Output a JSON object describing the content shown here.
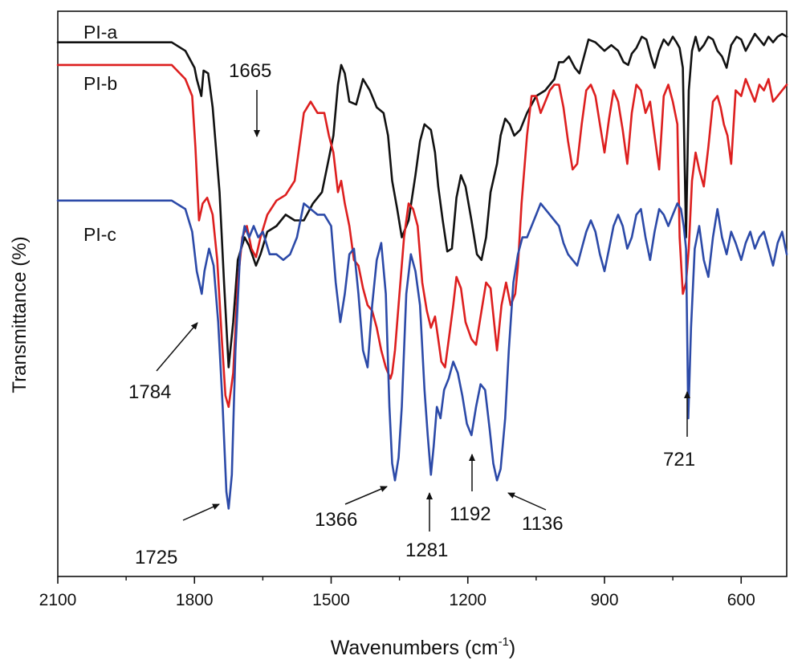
{
  "chart_data": {
    "type": "line",
    "xlabel": "Wavenumbers (cm",
    "xlabel_sup": "-1",
    "xlabel_close": ")",
    "ylabel": "Transmittance (%)",
    "xlim": [
      2100,
      500
    ],
    "x_reversed": true,
    "y_ticks_shown": false,
    "ylim": [
      0,
      1
    ],
    "x_ticks": [
      {
        "value": 2100,
        "label": "2100"
      },
      {
        "value": 1800,
        "label": "1800"
      },
      {
        "value": 1500,
        "label": "1500"
      },
      {
        "value": 1200,
        "label": "1200"
      },
      {
        "value": 900,
        "label": "900"
      },
      {
        "value": 600,
        "label": "600"
      }
    ],
    "x_minor_ticks": [
      1950,
      1650,
      1350,
      1050,
      750
    ],
    "series": [
      {
        "name": "PI-a",
        "color": "#111111",
        "x": [
          2100,
          1950,
          1850,
          1820,
          1800,
          1795,
          1785,
          1780,
          1770,
          1760,
          1745,
          1735,
          1725,
          1715,
          1705,
          1690,
          1680,
          1665,
          1655,
          1640,
          1620,
          1600,
          1580,
          1560,
          1540,
          1520,
          1505,
          1495,
          1485,
          1478,
          1470,
          1460,
          1445,
          1430,
          1415,
          1400,
          1385,
          1375,
          1366,
          1355,
          1345,
          1330,
          1315,
          1305,
          1295,
          1281,
          1272,
          1265,
          1255,
          1245,
          1235,
          1225,
          1215,
          1205,
          1192,
          1180,
          1170,
          1160,
          1150,
          1136,
          1128,
          1118,
          1108,
          1098,
          1085,
          1070,
          1050,
          1030,
          1010,
          1000,
          990,
          978,
          965,
          955,
          945,
          935,
          920,
          900,
          885,
          870,
          858,
          848,
          840,
          830,
          818,
          808,
          798,
          790,
          780,
          770,
          760,
          750,
          742,
          735,
          728,
          721,
          715,
          708,
          700,
          692,
          682,
          672,
          662,
          652,
          642,
          632,
          622,
          610,
          600,
          590,
          580,
          570,
          560,
          550,
          540,
          530,
          520,
          510,
          500
        ],
        "y": [
          0.945,
          0.945,
          0.945,
          0.93,
          0.9,
          0.88,
          0.85,
          0.895,
          0.89,
          0.83,
          0.68,
          0.52,
          0.37,
          0.45,
          0.56,
          0.6,
          0.585,
          0.55,
          0.57,
          0.61,
          0.62,
          0.64,
          0.63,
          0.63,
          0.66,
          0.68,
          0.74,
          0.78,
          0.87,
          0.905,
          0.89,
          0.84,
          0.835,
          0.88,
          0.86,
          0.83,
          0.82,
          0.78,
          0.7,
          0.65,
          0.6,
          0.63,
          0.71,
          0.77,
          0.8,
          0.79,
          0.75,
          0.69,
          0.63,
          0.575,
          0.58,
          0.67,
          0.71,
          0.69,
          0.63,
          0.57,
          0.56,
          0.6,
          0.68,
          0.73,
          0.78,
          0.81,
          0.8,
          0.78,
          0.79,
          0.82,
          0.85,
          0.86,
          0.88,
          0.91,
          0.91,
          0.92,
          0.9,
          0.89,
          0.92,
          0.95,
          0.945,
          0.93,
          0.94,
          0.93,
          0.91,
          0.905,
          0.925,
          0.935,
          0.955,
          0.95,
          0.92,
          0.9,
          0.93,
          0.95,
          0.94,
          0.955,
          0.945,
          0.935,
          0.9,
          0.6,
          0.86,
          0.93,
          0.955,
          0.93,
          0.94,
          0.955,
          0.95,
          0.93,
          0.92,
          0.9,
          0.94,
          0.955,
          0.95,
          0.93,
          0.945,
          0.96,
          0.95,
          0.94,
          0.955,
          0.945,
          0.955,
          0.96,
          0.955
        ]
      },
      {
        "name": "PI-b",
        "color": "#dd1f1f",
        "x": [
          2100,
          1950,
          1850,
          1820,
          1805,
          1798,
          1790,
          1782,
          1772,
          1760,
          1750,
          1740,
          1732,
          1725,
          1715,
          1705,
          1695,
          1685,
          1675,
          1665,
          1655,
          1640,
          1620,
          1600,
          1580,
          1560,
          1545,
          1530,
          1515,
          1505,
          1495,
          1485,
          1478,
          1470,
          1460,
          1450,
          1440,
          1430,
          1420,
          1410,
          1400,
          1390,
          1380,
          1370,
          1366,
          1360,
          1350,
          1340,
          1330,
          1320,
          1310,
          1300,
          1290,
          1281,
          1272,
          1265,
          1258,
          1250,
          1240,
          1232,
          1225,
          1215,
          1205,
          1192,
          1182,
          1170,
          1160,
          1150,
          1136,
          1126,
          1116,
          1106,
          1096,
          1090,
          1082,
          1070,
          1060,
          1050,
          1040,
          1030,
          1020,
          1010,
          1000,
          990,
          980,
          970,
          960,
          950,
          940,
          930,
          920,
          910,
          900,
          890,
          880,
          870,
          860,
          850,
          840,
          830,
          820,
          810,
          800,
          790,
          780,
          770,
          760,
          750,
          740,
          735,
          728,
          721,
          715,
          708,
          700,
          692,
          682,
          672,
          662,
          652,
          645,
          638,
          630,
          622,
          612,
          600,
          590,
          580,
          570,
          560,
          550,
          540,
          530,
          520,
          510,
          500
        ],
        "y": [
          0.905,
          0.905,
          0.905,
          0.88,
          0.85,
          0.76,
          0.63,
          0.66,
          0.67,
          0.64,
          0.56,
          0.42,
          0.32,
          0.3,
          0.36,
          0.52,
          0.6,
          0.62,
          0.58,
          0.565,
          0.6,
          0.64,
          0.665,
          0.675,
          0.7,
          0.82,
          0.84,
          0.82,
          0.82,
          0.78,
          0.75,
          0.68,
          0.7,
          0.66,
          0.62,
          0.56,
          0.55,
          0.51,
          0.48,
          0.47,
          0.44,
          0.4,
          0.37,
          0.35,
          0.36,
          0.4,
          0.5,
          0.6,
          0.66,
          0.65,
          0.62,
          0.52,
          0.47,
          0.44,
          0.46,
          0.42,
          0.38,
          0.37,
          0.43,
          0.48,
          0.53,
          0.51,
          0.45,
          0.42,
          0.41,
          0.47,
          0.52,
          0.51,
          0.4,
          0.48,
          0.52,
          0.48,
          0.5,
          0.55,
          0.66,
          0.78,
          0.85,
          0.85,
          0.82,
          0.84,
          0.86,
          0.87,
          0.87,
          0.83,
          0.77,
          0.72,
          0.73,
          0.8,
          0.86,
          0.87,
          0.85,
          0.8,
          0.75,
          0.81,
          0.86,
          0.84,
          0.79,
          0.73,
          0.82,
          0.87,
          0.86,
          0.82,
          0.84,
          0.78,
          0.72,
          0.85,
          0.87,
          0.84,
          0.8,
          0.6,
          0.5,
          0.52,
          0.58,
          0.7,
          0.75,
          0.72,
          0.69,
          0.76,
          0.84,
          0.85,
          0.83,
          0.8,
          0.78,
          0.73,
          0.86,
          0.85,
          0.88,
          0.86,
          0.84,
          0.87,
          0.86,
          0.88,
          0.84,
          0.85,
          0.86,
          0.87
        ]
      },
      {
        "name": "PI-c",
        "color": "#2c4aa8",
        "x": [
          2100,
          1950,
          1850,
          1820,
          1805,
          1795,
          1784,
          1778,
          1768,
          1758,
          1748,
          1738,
          1730,
          1725,
          1718,
          1710,
          1700,
          1690,
          1680,
          1670,
          1660,
          1650,
          1635,
          1620,
          1605,
          1590,
          1575,
          1560,
          1545,
          1530,
          1515,
          1500,
          1490,
          1480,
          1470,
          1460,
          1450,
          1440,
          1430,
          1420,
          1410,
          1400,
          1390,
          1380,
          1372,
          1366,
          1360,
          1352,
          1345,
          1335,
          1325,
          1315,
          1305,
          1295,
          1288,
          1281,
          1275,
          1268,
          1260,
          1252,
          1242,
          1232,
          1222,
          1212,
          1202,
          1192,
          1182,
          1172,
          1162,
          1152,
          1144,
          1136,
          1128,
          1118,
          1110,
          1100,
          1090,
          1080,
          1070,
          1060,
          1050,
          1040,
          1030,
          1020,
          1010,
          1000,
          990,
          980,
          970,
          960,
          950,
          940,
          930,
          920,
          910,
          900,
          890,
          880,
          870,
          860,
          850,
          840,
          830,
          820,
          810,
          800,
          790,
          780,
          770,
          760,
          750,
          740,
          732,
          726,
          721,
          716,
          710,
          702,
          692,
          682,
          672,
          662,
          652,
          642,
          632,
          622,
          612,
          600,
          590,
          580,
          570,
          560,
          550,
          540,
          530,
          520,
          510,
          500
        ],
        "y": [
          0.665,
          0.665,
          0.665,
          0.65,
          0.61,
          0.54,
          0.5,
          0.54,
          0.58,
          0.55,
          0.45,
          0.3,
          0.15,
          0.12,
          0.18,
          0.4,
          0.57,
          0.62,
          0.6,
          0.62,
          0.6,
          0.61,
          0.57,
          0.57,
          0.56,
          0.57,
          0.6,
          0.66,
          0.65,
          0.64,
          0.64,
          0.62,
          0.52,
          0.45,
          0.5,
          0.57,
          0.58,
          0.5,
          0.4,
          0.37,
          0.48,
          0.56,
          0.59,
          0.5,
          0.3,
          0.2,
          0.17,
          0.21,
          0.3,
          0.5,
          0.57,
          0.54,
          0.48,
          0.33,
          0.25,
          0.18,
          0.23,
          0.3,
          0.28,
          0.33,
          0.35,
          0.38,
          0.36,
          0.32,
          0.27,
          0.25,
          0.3,
          0.34,
          0.33,
          0.26,
          0.2,
          0.17,
          0.19,
          0.28,
          0.4,
          0.52,
          0.57,
          0.6,
          0.6,
          0.62,
          0.64,
          0.66,
          0.65,
          0.64,
          0.63,
          0.62,
          0.59,
          0.57,
          0.56,
          0.55,
          0.58,
          0.61,
          0.63,
          0.61,
          0.57,
          0.54,
          0.58,
          0.62,
          0.64,
          0.62,
          0.58,
          0.6,
          0.64,
          0.65,
          0.6,
          0.56,
          0.61,
          0.65,
          0.64,
          0.62,
          0.64,
          0.66,
          0.65,
          0.62,
          0.58,
          0.28,
          0.44,
          0.58,
          0.62,
          0.56,
          0.53,
          0.6,
          0.65,
          0.6,
          0.57,
          0.61,
          0.59,
          0.56,
          0.59,
          0.61,
          0.58,
          0.6,
          0.61,
          0.58,
          0.55,
          0.59,
          0.61,
          0.57
        ]
      }
    ],
    "annotations": [
      {
        "text": "1665"
      },
      {
        "text": "1784"
      },
      {
        "text": "1725"
      },
      {
        "text": "1366"
      },
      {
        "text": "1281"
      },
      {
        "text": "1192"
      },
      {
        "text": "1136"
      },
      {
        "text": "721"
      }
    ]
  }
}
